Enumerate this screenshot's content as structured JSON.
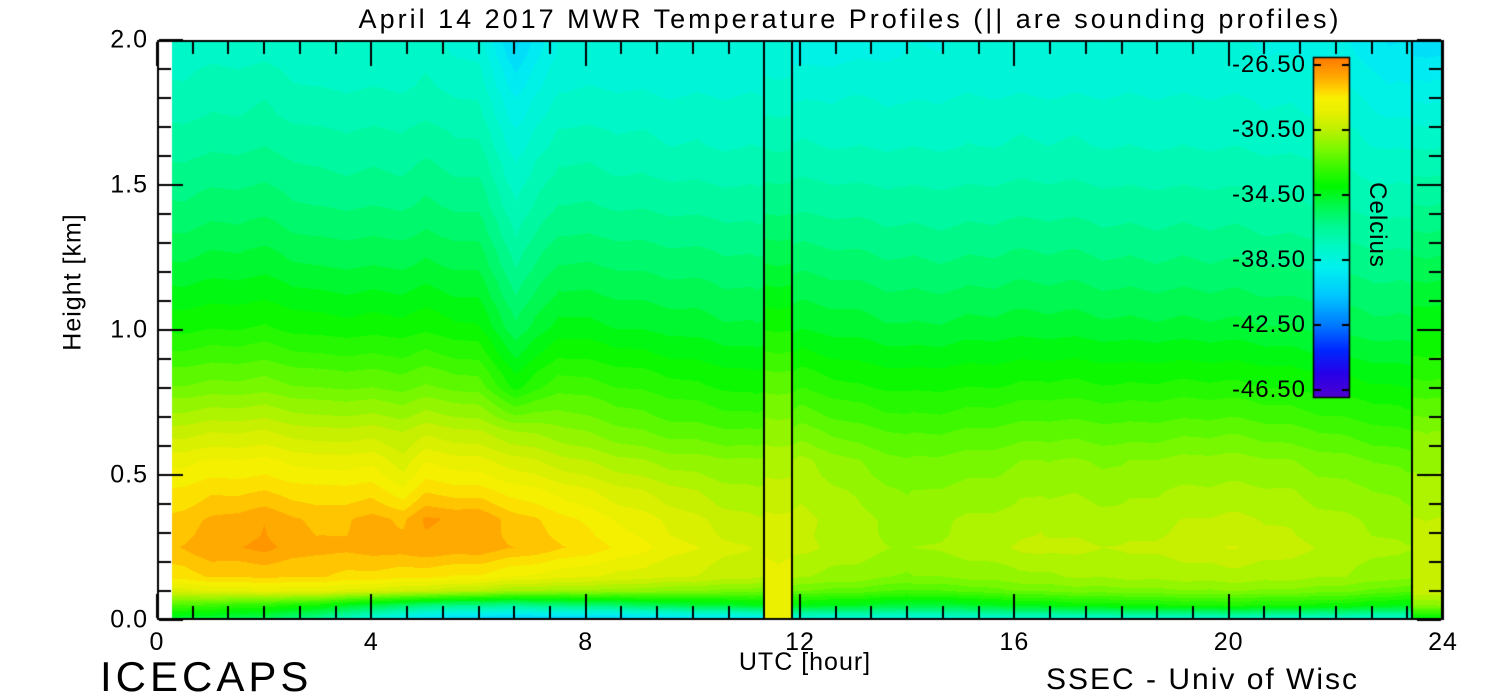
{
  "title": "April 14 2017 MWR Temperature Profiles (|| are sounding profiles)",
  "watermarks": {
    "left": "ICECAPS",
    "right": "SSEC - Univ of Wisc"
  },
  "axes": {
    "x": {
      "label": "UTC [hour]",
      "min": 0,
      "max": 24,
      "major_ticks": [
        0,
        4,
        8,
        12,
        16,
        20,
        24
      ],
      "tick_labels": [
        "0",
        "4",
        "8",
        "12",
        "16",
        "20",
        "24"
      ],
      "minor_step": 0.6667
    },
    "y": {
      "label": "Height [km]",
      "min": 0,
      "max": 2,
      "major_ticks": [
        0,
        0.5,
        1.0,
        1.5,
        2.0
      ],
      "tick_labels": [
        "0.0",
        "0.5",
        "1.0",
        "1.5",
        "2.0"
      ],
      "minor_step": 0.1
    }
  },
  "colorbar": {
    "label": "Celcius",
    "vmax": -26.0,
    "vmin": -47.0,
    "tick_values": [
      -26.5,
      -30.5,
      -34.5,
      -38.5,
      -42.5,
      -46.5
    ],
    "tick_labels": [
      "-26.50",
      "-30.50",
      "-34.50",
      "-38.50",
      "-42.50",
      "-46.50"
    ],
    "colormap_stops": [
      [
        0.0,
        "#5000d0"
      ],
      [
        0.07,
        "#2800e8"
      ],
      [
        0.14,
        "#0028ff"
      ],
      [
        0.22,
        "#0080ff"
      ],
      [
        0.3,
        "#00c8ff"
      ],
      [
        0.38,
        "#00f0f0"
      ],
      [
        0.44,
        "#00f8c8"
      ],
      [
        0.5,
        "#00f896"
      ],
      [
        0.56,
        "#00f850"
      ],
      [
        0.62,
        "#00f800"
      ],
      [
        0.68,
        "#40f800"
      ],
      [
        0.74,
        "#88f800"
      ],
      [
        0.79,
        "#c0f000"
      ],
      [
        0.84,
        "#e8f000"
      ],
      [
        0.88,
        "#f8f000"
      ],
      [
        0.9,
        "#ffd800"
      ],
      [
        0.94,
        "#ffaa00"
      ],
      [
        1.0,
        "#ff7800"
      ]
    ]
  },
  "chart_data": {
    "type": "heatmap",
    "title": "April 14 2017 MWR Temperature Profiles (|| are sounding profiles)",
    "xlabel": "UTC [hour]",
    "ylabel": "Height [km]",
    "xlim": [
      0,
      24
    ],
    "ylim": [
      0,
      2
    ],
    "data_start_hour": 0.28,
    "contour_interval_c": 0.5,
    "x_hours": [
      0.25,
      1,
      2,
      3,
      4,
      4.6,
      5,
      6,
      6.7,
      7.5,
      8.5,
      9.5,
      10.5,
      11.2,
      12,
      13,
      14,
      15,
      16,
      16.5,
      17,
      18,
      19,
      20,
      21,
      22,
      23,
      23.3
    ],
    "y_heights_km": [
      0,
      0.05,
      0.1,
      0.15,
      0.25,
      0.35,
      0.45,
      0.55,
      0.65,
      0.8,
      1.0,
      1.2,
      1.4,
      1.6,
      1.8,
      2.0
    ],
    "temperature_c": [
      [
        -35.0,
        -35.3,
        -35.8,
        -36.8,
        -38.8,
        -39.6,
        -40.3,
        -40.8,
        -41.0,
        -41.0,
        -40.8,
        -40.5,
        -40.2,
        -40.0,
        -39.0,
        -38.8,
        -38.8,
        -38.6,
        -38.5,
        -38.5,
        -38.5,
        -38.4,
        -38.4,
        -38.3,
        -38.4,
        -38.4,
        -38.5,
        -38.5
      ],
      [
        -32.5,
        -32.8,
        -33.2,
        -33.8,
        -35.0,
        -35.5,
        -36.0,
        -36.3,
        -36.5,
        -36.0,
        -35.8,
        -35.2,
        -34.8,
        -34.5,
        -34.3,
        -34.5,
        -35.0,
        -34.8,
        -34.3,
        -34.2,
        -34.0,
        -33.8,
        -33.6,
        -33.5,
        -33.6,
        -33.8,
        -34.2,
        -34.4
      ],
      [
        -29.8,
        -29.5,
        -29.3,
        -29.4,
        -29.8,
        -30.0,
        -30.2,
        -30.6,
        -31.0,
        -31.1,
        -31.2,
        -31.4,
        -31.6,
        -31.8,
        -32.0,
        -32.2,
        -32.6,
        -32.4,
        -32.0,
        -31.9,
        -31.8,
        -31.7,
        -31.6,
        -31.5,
        -31.6,
        -31.8,
        -32.2,
        -32.4
      ],
      [
        -28.3,
        -28.0,
        -27.9,
        -28.0,
        -28.2,
        -28.3,
        -28.4,
        -28.6,
        -29.0,
        -29.3,
        -29.6,
        -29.9,
        -30.2,
        -30.4,
        -31.0,
        -31.2,
        -31.6,
        -31.4,
        -31.2,
        -31.1,
        -31.0,
        -30.9,
        -30.8,
        -30.7,
        -30.8,
        -31.0,
        -31.3,
        -31.4
      ],
      [
        -27.6,
        -27.1,
        -26.9,
        -27.4,
        -27.3,
        -27.2,
        -27.1,
        -27.2,
        -27.5,
        -27.9,
        -28.5,
        -29.2,
        -29.8,
        -30.1,
        -30.4,
        -30.7,
        -31.1,
        -30.8,
        -30.5,
        -30.3,
        -30.4,
        -30.5,
        -30.3,
        -30.0,
        -30.3,
        -30.6,
        -30.9,
        -31.0
      ],
      [
        -27.9,
        -27.5,
        -27.1,
        -27.7,
        -27.4,
        -27.6,
        -27.0,
        -27.1,
        -27.8,
        -28.3,
        -29.0,
        -29.6,
        -30.2,
        -30.5,
        -30.4,
        -30.8,
        -31.3,
        -31.0,
        -30.8,
        -30.6,
        -30.7,
        -30.8,
        -30.6,
        -30.4,
        -30.6,
        -30.9,
        -31.2,
        -31.3
      ],
      [
        -28.5,
        -28.2,
        -28.1,
        -28.4,
        -28.3,
        -28.9,
        -28.2,
        -28.4,
        -28.8,
        -29.2,
        -29.8,
        -30.3,
        -30.8,
        -31.0,
        -30.6,
        -31.1,
        -31.6,
        -31.4,
        -31.2,
        -31.1,
        -31.1,
        -31.2,
        -31.0,
        -30.9,
        -31.0,
        -31.3,
        -31.6,
        -31.7
      ],
      [
        -29.2,
        -29.0,
        -28.9,
        -29.3,
        -29.2,
        -29.8,
        -29.1,
        -29.4,
        -29.8,
        -30.3,
        -30.8,
        -31.2,
        -31.4,
        -31.5,
        -30.9,
        -31.5,
        -32.0,
        -31.8,
        -31.6,
        -31.5,
        -31.5,
        -31.6,
        -31.4,
        -31.3,
        -31.5,
        -31.8,
        -32.1,
        -32.2
      ],
      [
        -30.3,
        -30.1,
        -30.0,
        -30.4,
        -30.3,
        -30.5,
        -30.2,
        -30.5,
        -31.0,
        -31.3,
        -31.8,
        -32.2,
        -32.4,
        -32.5,
        -31.8,
        -32.3,
        -32.6,
        -32.5,
        -32.3,
        -32.2,
        -32.2,
        -32.3,
        -32.2,
        -32.1,
        -32.3,
        -32.6,
        -32.9,
        -33.0
      ],
      [
        -31.9,
        -31.8,
        -31.7,
        -32.0,
        -32.0,
        -32.1,
        -31.9,
        -32.2,
        -33.6,
        -32.6,
        -32.9,
        -33.2,
        -33.5,
        -33.7,
        -33.0,
        -33.4,
        -33.6,
        -33.5,
        -33.4,
        -33.3,
        -33.3,
        -33.4,
        -33.3,
        -33.3,
        -33.5,
        -33.7,
        -33.9,
        -34.0
      ],
      [
        -33.6,
        -33.5,
        -33.4,
        -33.7,
        -33.7,
        -33.7,
        -33.6,
        -33.9,
        -35.3,
        -34.2,
        -34.4,
        -34.6,
        -34.8,
        -34.9,
        -34.5,
        -34.7,
        -34.9,
        -34.8,
        -34.7,
        -34.7,
        -34.7,
        -34.8,
        -34.8,
        -34.8,
        -34.9,
        -35.1,
        -35.3,
        -35.3
      ],
      [
        -34.8,
        -34.7,
        -34.6,
        -34.9,
        -34.9,
        -34.9,
        -34.8,
        -35.0,
        -36.4,
        -35.3,
        -35.4,
        -35.6,
        -35.7,
        -35.8,
        -35.5,
        -35.7,
        -35.8,
        -35.8,
        -35.7,
        -35.7,
        -35.7,
        -35.8,
        -35.8,
        -35.8,
        -35.9,
        -36.0,
        -36.2,
        -36.2
      ],
      [
        -35.8,
        -35.7,
        -35.6,
        -35.9,
        -35.9,
        -35.9,
        -35.8,
        -36.0,
        -37.3,
        -36.3,
        -36.4,
        -36.5,
        -36.6,
        -36.7,
        -36.5,
        -36.6,
        -36.7,
        -36.7,
        -36.6,
        -36.6,
        -36.6,
        -36.7,
        -36.7,
        -36.7,
        -36.8,
        -36.9,
        -37.1,
        -37.1
      ],
      [
        -36.6,
        -36.5,
        -36.4,
        -36.7,
        -36.7,
        -36.7,
        -36.6,
        -36.8,
        -38.1,
        -37.1,
        -37.2,
        -37.3,
        -37.4,
        -37.4,
        -37.3,
        -37.4,
        -37.4,
        -37.4,
        -37.3,
        -37.3,
        -37.3,
        -37.4,
        -37.4,
        -37.4,
        -37.5,
        -37.6,
        -37.9,
        -37.9
      ],
      [
        -37.3,
        -37.2,
        -37.1,
        -37.4,
        -37.4,
        -37.4,
        -37.3,
        -37.6,
        -39.0,
        -37.9,
        -37.9,
        -38.0,
        -38.0,
        -38.0,
        -38.1,
        -38.0,
        -38.1,
        -38.0,
        -38.0,
        -38.0,
        -38.0,
        -38.0,
        -38.0,
        -38.0,
        -38.1,
        -38.2,
        -38.8,
        -38.8
      ],
      [
        -37.9,
        -37.8,
        -37.8,
        -38.0,
        -38.0,
        -38.0,
        -37.9,
        -38.3,
        -40.2,
        -38.5,
        -38.4,
        -38.5,
        -38.4,
        -38.4,
        -38.9,
        -38.8,
        -38.6,
        -38.5,
        -38.5,
        -38.5,
        -38.5,
        -38.5,
        -38.5,
        -38.5,
        -38.6,
        -38.9,
        -39.6,
        -39.6
      ]
    ],
    "soundings": [
      {
        "start_hour": 11.32,
        "end_hour": 11.85,
        "temperature_c": [
          -29.4,
          -29.2,
          -29.1,
          -29.3,
          -29.6,
          -29.9,
          -30.3,
          -30.7,
          -31.2,
          -32.1,
          -33.5,
          -34.8,
          -36.0,
          -36.9,
          -37.7,
          -38.5
        ]
      },
      {
        "start_hour": 23.42,
        "end_hour": 24.0,
        "temperature_c": [
          -34.5,
          -31.5,
          -30.0,
          -30.1,
          -30.3,
          -30.5,
          -30.8,
          -31.1,
          -31.5,
          -32.8,
          -34.0,
          -35.2,
          -36.3,
          -37.3,
          -38.6,
          -39.8
        ]
      }
    ]
  }
}
